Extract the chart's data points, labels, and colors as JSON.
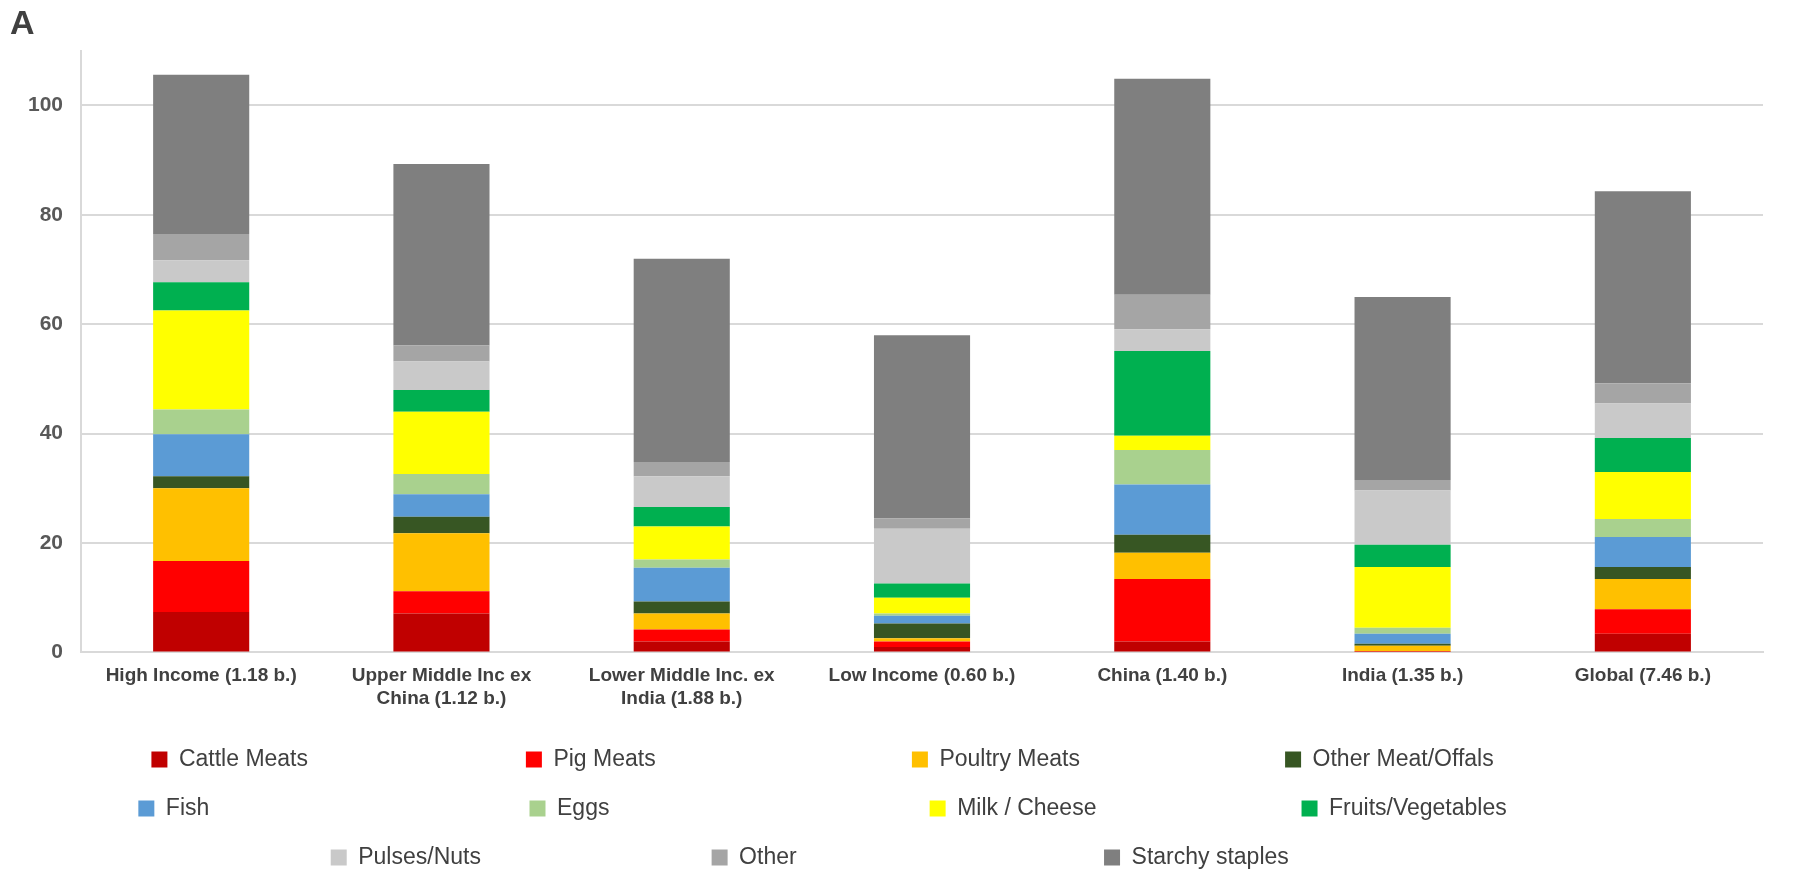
{
  "chart_data": {
    "type": "bar",
    "title": "A",
    "stacked": true,
    "grid": "y",
    "legend": "bottom",
    "categories": [
      "High Income (1.18 b.)",
      "Upper Middle Inc ex China (1.12 b.)",
      "Lower Middle Inc. ex India (1.88 b.)",
      "Low Income (0.60 b.)",
      "China (1.40 b.)",
      "India (1.35 b.)",
      "Global (7.46 b.)"
    ],
    "ylim": [
      0,
      110
    ],
    "yticks": [
      0,
      20,
      40,
      60,
      80,
      100
    ],
    "series": [
      {
        "name": "Cattle Meats",
        "color": "#c00000",
        "values": [
          7.4,
          7.1,
          2.0,
          1.0,
          2.0,
          0.1,
          3.4
        ]
      },
      {
        "name": "Pig Meats",
        "color": "#ff0000",
        "values": [
          9.3,
          4.1,
          2.2,
          1.0,
          11.4,
          0.1,
          4.5
        ]
      },
      {
        "name": "Poultry Meats",
        "color": "#ffc000",
        "values": [
          13.3,
          10.6,
          2.9,
          0.6,
          4.8,
          1.0,
          5.5
        ]
      },
      {
        "name": "Other Meat/Offals",
        "color": "#375623",
        "values": [
          2.2,
          3.0,
          2.2,
          2.7,
          3.3,
          0.4,
          2.2
        ]
      },
      {
        "name": "Fish",
        "color": "#5b9bd5",
        "values": [
          7.7,
          4.1,
          6.2,
          1.4,
          9.2,
          1.8,
          5.5
        ]
      },
      {
        "name": "Eggs",
        "color": "#a9d18e",
        "values": [
          4.5,
          3.7,
          1.5,
          0.4,
          6.3,
          1.1,
          3.3
        ]
      },
      {
        "name": "Milk / Cheese",
        "color": "#ffff00",
        "values": [
          18.1,
          11.4,
          6.0,
          2.9,
          2.6,
          11.1,
          8.6
        ]
      },
      {
        "name": "Fruits/Vegetables",
        "color": "#00b050",
        "values": [
          5.2,
          4.0,
          3.6,
          2.6,
          15.5,
          4.1,
          6.2
        ]
      },
      {
        "name": "Pulses/Nuts",
        "color": "#c9c9c9",
        "values": [
          4.0,
          5.2,
          5.6,
          10.0,
          4.0,
          9.9,
          6.3
        ]
      },
      {
        "name": "Other",
        "color": "#a5a5a5",
        "values": [
          4.8,
          2.9,
          2.6,
          1.9,
          6.3,
          1.9,
          3.7
        ]
      },
      {
        "name": "Starchy staples",
        "color": "#7f7f7f",
        "values": [
          29.1,
          33.2,
          37.2,
          33.5,
          39.5,
          33.5,
          35.1
        ]
      }
    ]
  }
}
